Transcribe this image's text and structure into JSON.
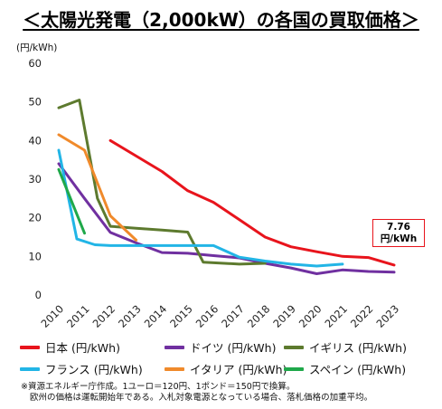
{
  "chart_data": {
    "type": "line",
    "title": "＜太陽光発電（2,000kW）の各国の買取価格＞",
    "ylabel": "(円/kWh)",
    "xlabel": "",
    "ylim": [
      0,
      60
    ],
    "yticks": [
      "0",
      "10",
      "20",
      "30",
      "40",
      "50",
      "60"
    ],
    "xticks": [
      "2010",
      "2011",
      "2012",
      "2013",
      "2014",
      "2015",
      "2016",
      "2017",
      "2018",
      "2019",
      "2020",
      "2021",
      "2022",
      "2023"
    ],
    "grid": false,
    "legend_position": "bottom",
    "series": [
      {
        "name": "日本 (円/kWh)",
        "color": "#e8141c",
        "points": [
          [
            2012,
            40
          ],
          [
            2013,
            36
          ],
          [
            2014,
            32
          ],
          [
            2015,
            27
          ],
          [
            2016,
            24
          ],
          [
            2017,
            19.5
          ],
          [
            2018,
            15
          ],
          [
            2019,
            12.5
          ],
          [
            2020,
            11.2
          ],
          [
            2021,
            10
          ],
          [
            2022,
            9.7
          ],
          [
            2023,
            7.76
          ]
        ]
      },
      {
        "name": "ドイツ (円/kWh)",
        "color": "#7030a0",
        "points": [
          [
            2010,
            34
          ],
          [
            2011,
            25
          ],
          [
            2012,
            16.2
          ],
          [
            2013,
            13.5
          ],
          [
            2014,
            11
          ],
          [
            2015,
            10.8
          ],
          [
            2016,
            10.2
          ],
          [
            2017,
            9.6
          ],
          [
            2018,
            8.2
          ],
          [
            2019,
            7
          ],
          [
            2020,
            5.5
          ],
          [
            2021,
            6.5
          ],
          [
            2022,
            6.1
          ],
          [
            2023,
            5.9
          ]
        ]
      },
      {
        "name": "イギリス (円/kWh)",
        "color": "#5d7a2e",
        "points": [
          [
            2010,
            48.5
          ],
          [
            2010.8,
            50.5
          ],
          [
            2011.5,
            25
          ],
          [
            2012,
            17.8
          ],
          [
            2013,
            17.3
          ],
          [
            2014,
            16.8
          ],
          [
            2015,
            16.3
          ],
          [
            2015.6,
            8.5
          ],
          [
            2017,
            8
          ],
          [
            2018,
            8.2
          ]
        ]
      },
      {
        "name": "フランス (円/kWh)",
        "color": "#22b5e6",
        "points": [
          [
            2010,
            37.5
          ],
          [
            2010.7,
            14.5
          ],
          [
            2011.4,
            13
          ],
          [
            2012,
            12.8
          ],
          [
            2013,
            12.8
          ],
          [
            2014,
            12.8
          ],
          [
            2015,
            12.8
          ],
          [
            2016,
            12.8
          ],
          [
            2017,
            9.8
          ],
          [
            2018,
            8.8
          ],
          [
            2019,
            8
          ],
          [
            2020,
            7.5
          ],
          [
            2021,
            8
          ]
        ]
      },
      {
        "name": "イタリア (円/kWh)",
        "color": "#f08a2b",
        "points": [
          [
            2010,
            41.5
          ],
          [
            2011,
            37.5
          ],
          [
            2012,
            20.5
          ],
          [
            2013,
            14.2
          ]
        ]
      },
      {
        "name": "スペイン (円/kWh)",
        "color": "#1fa84a",
        "points": [
          [
            2010,
            32.5
          ],
          [
            2011,
            16
          ]
        ]
      }
    ],
    "annotations": [
      {
        "text_line1": "7.76",
        "text_line2": "円/kWh",
        "x": 2023,
        "y": 7.76
      }
    ]
  },
  "notes": {
    "line1": "※資源エネルギー庁作成。1ユーロ＝120円、1ポンド＝150円で換算。",
    "line2": "欧州の価格は運転開始年である。入札対象電源となっている場合、落札価格の加重平均。"
  }
}
